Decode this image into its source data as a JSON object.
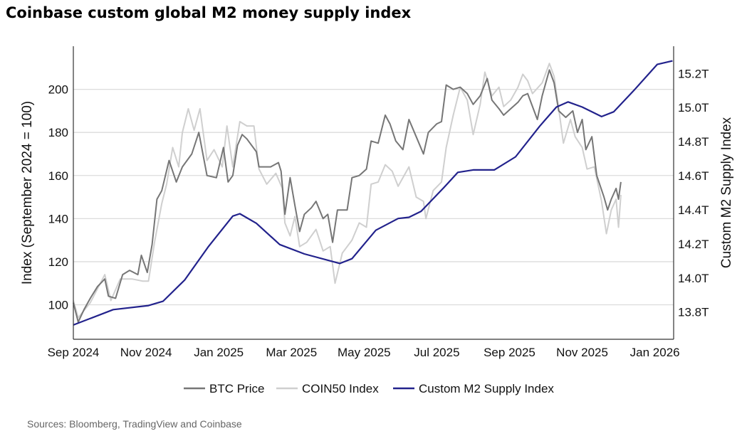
{
  "title": "Coinbase custom global M2 money supply index",
  "source": "Sources: Bloomberg, TradingView and Coinbase",
  "chart_data": {
    "type": "line",
    "title": "Coinbase custom global M2 money supply index",
    "xlabel": "",
    "ylabel": "Index (September 2024 = 100)",
    "y2label": "Custom M2 Supply Index",
    "xlim": [
      "2024-09-01",
      "2026-01-17"
    ],
    "ylim": [
      84,
      220
    ],
    "y2lim": [
      13.64,
      15.36
    ],
    "grid": true,
    "legend": "bottom",
    "x_ticks": [
      {
        "date": "2024-09-01",
        "label": "Sep 2024"
      },
      {
        "date": "2024-11-01",
        "label": "Nov 2024"
      },
      {
        "date": "2025-01-01",
        "label": "Jan 2025"
      },
      {
        "date": "2025-03-01",
        "label": "Mar 2025"
      },
      {
        "date": "2025-05-01",
        "label": "May 2025"
      },
      {
        "date": "2025-07-01",
        "label": "Jul 2025"
      },
      {
        "date": "2025-09-01",
        "label": "Sep 2025"
      },
      {
        "date": "2025-11-01",
        "label": "Nov 2025"
      },
      {
        "date": "2026-01-01",
        "label": "Jan 2026"
      }
    ],
    "y_ticks": [
      {
        "value": 100,
        "label": "100"
      },
      {
        "value": 120,
        "label": "120"
      },
      {
        "value": 140,
        "label": "140"
      },
      {
        "value": 160,
        "label": "160"
      },
      {
        "value": 180,
        "label": "180"
      },
      {
        "value": 200,
        "label": "200"
      }
    ],
    "y2_ticks": [
      {
        "value": 13.8,
        "label": "13.8T"
      },
      {
        "value": 14.0,
        "label": "14.0T"
      },
      {
        "value": 14.2,
        "label": "14.2T"
      },
      {
        "value": 14.4,
        "label": "14.4T"
      },
      {
        "value": 14.6,
        "label": "14.6T"
      },
      {
        "value": 14.8,
        "label": "14.8T"
      },
      {
        "value": 15.0,
        "label": "15.0T"
      },
      {
        "value": 15.2,
        "label": "15.2T"
      }
    ],
    "series": [
      {
        "name": "BTC Price",
        "axis": "left",
        "color": "#767676",
        "width": 2,
        "points": [
          [
            "2024-09-01",
            101
          ],
          [
            "2024-09-05",
            92
          ],
          [
            "2024-09-10",
            98
          ],
          [
            "2024-09-15",
            103
          ],
          [
            "2024-09-21",
            108.5
          ],
          [
            "2024-09-27",
            112
          ],
          [
            "2024-09-30",
            104
          ],
          [
            "2024-10-06",
            103
          ],
          [
            "2024-10-12",
            114
          ],
          [
            "2024-10-18",
            116
          ],
          [
            "2024-10-25",
            114
          ],
          [
            "2024-10-28",
            123
          ],
          [
            "2024-11-02",
            115
          ],
          [
            "2024-11-06",
            128
          ],
          [
            "2024-11-10",
            149
          ],
          [
            "2024-11-14",
            153
          ],
          [
            "2024-11-20",
            167
          ],
          [
            "2024-11-26",
            157
          ],
          [
            "2024-12-01",
            164
          ],
          [
            "2024-12-09",
            170
          ],
          [
            "2024-12-15",
            180
          ],
          [
            "2024-12-22",
            160
          ],
          [
            "2024-12-30",
            159
          ],
          [
            "2025-01-05",
            173
          ],
          [
            "2025-01-09",
            157
          ],
          [
            "2025-01-13",
            160
          ],
          [
            "2025-01-17",
            174
          ],
          [
            "2025-01-21",
            179
          ],
          [
            "2025-01-25",
            177
          ],
          [
            "2025-02-02",
            171
          ],
          [
            "2025-02-04",
            164
          ],
          [
            "2025-02-13",
            164
          ],
          [
            "2025-02-19",
            166
          ],
          [
            "2025-02-21",
            162
          ],
          [
            "2025-02-24",
            142
          ],
          [
            "2025-02-28",
            159
          ],
          [
            "2025-03-04",
            146
          ],
          [
            "2025-03-08",
            134
          ],
          [
            "2025-03-12",
            142
          ],
          [
            "2025-03-18",
            145
          ],
          [
            "2025-03-22",
            148
          ],
          [
            "2025-03-28",
            140
          ],
          [
            "2025-04-01",
            142
          ],
          [
            "2025-04-05",
            129
          ],
          [
            "2025-04-09",
            144
          ],
          [
            "2025-04-17",
            144
          ],
          [
            "2025-04-21",
            159
          ],
          [
            "2025-04-27",
            160
          ],
          [
            "2025-05-03",
            163
          ],
          [
            "2025-05-07",
            176
          ],
          [
            "2025-05-13",
            175
          ],
          [
            "2025-05-19",
            188
          ],
          [
            "2025-05-23",
            184
          ],
          [
            "2025-05-28",
            176
          ],
          [
            "2025-06-03",
            172
          ],
          [
            "2025-06-08",
            186
          ],
          [
            "2025-06-14",
            178
          ],
          [
            "2025-06-20",
            170
          ],
          [
            "2025-06-24",
            180
          ],
          [
            "2025-07-01",
            184
          ],
          [
            "2025-07-05",
            185
          ],
          [
            "2025-07-09",
            202
          ],
          [
            "2025-07-15",
            200
          ],
          [
            "2025-07-21",
            201
          ],
          [
            "2025-07-27",
            198
          ],
          [
            "2025-08-01",
            193
          ],
          [
            "2025-08-07",
            197
          ],
          [
            "2025-08-13",
            205
          ],
          [
            "2025-08-17",
            195
          ],
          [
            "2025-08-23",
            191
          ],
          [
            "2025-08-27",
            188
          ],
          [
            "2025-09-02",
            191
          ],
          [
            "2025-09-08",
            194
          ],
          [
            "2025-09-12",
            197
          ],
          [
            "2025-09-16",
            198
          ],
          [
            "2025-09-24",
            186
          ],
          [
            "2025-09-28",
            197
          ],
          [
            "2025-10-04",
            209
          ],
          [
            "2025-10-08",
            203
          ],
          [
            "2025-10-12",
            190
          ],
          [
            "2025-10-18",
            187
          ],
          [
            "2025-10-24",
            190
          ],
          [
            "2025-10-28",
            180
          ],
          [
            "2025-11-01",
            186
          ],
          [
            "2025-11-04",
            172
          ],
          [
            "2025-11-09",
            178
          ],
          [
            "2025-11-13",
            160
          ],
          [
            "2025-11-19",
            150
          ],
          [
            "2025-11-22",
            144
          ],
          [
            "2025-11-25",
            149
          ],
          [
            "2025-11-29",
            154
          ],
          [
            "2025-12-01",
            149
          ],
          [
            "2025-12-03",
            157
          ]
        ]
      },
      {
        "name": "COIN50 Index",
        "axis": "left",
        "color": "#cfcfcf",
        "width": 2,
        "points": [
          [
            "2024-09-01",
            102
          ],
          [
            "2024-09-05",
            94
          ],
          [
            "2024-09-15",
            101
          ],
          [
            "2024-09-27",
            114
          ],
          [
            "2024-10-02",
            102
          ],
          [
            "2024-10-10",
            112
          ],
          [
            "2024-10-20",
            112
          ],
          [
            "2024-10-29",
            111
          ],
          [
            "2024-11-03",
            111
          ],
          [
            "2024-11-08",
            129
          ],
          [
            "2024-11-14",
            147
          ],
          [
            "2024-11-18",
            156
          ],
          [
            "2024-11-23",
            173
          ],
          [
            "2024-11-28",
            164
          ],
          [
            "2024-12-01",
            180
          ],
          [
            "2024-12-06",
            191
          ],
          [
            "2024-12-11",
            181
          ],
          [
            "2024-12-16",
            191
          ],
          [
            "2024-12-22",
            167
          ],
          [
            "2024-12-28",
            172
          ],
          [
            "2025-01-04",
            164
          ],
          [
            "2025-01-08",
            183
          ],
          [
            "2025-01-13",
            164
          ],
          [
            "2025-01-19",
            185
          ],
          [
            "2025-01-25",
            183
          ],
          [
            "2025-01-31",
            183
          ],
          [
            "2025-02-04",
            163
          ],
          [
            "2025-02-10",
            156
          ],
          [
            "2025-02-17",
            161
          ],
          [
            "2025-02-22",
            154
          ],
          [
            "2025-02-24",
            138
          ],
          [
            "2025-02-28",
            132
          ],
          [
            "2025-03-04",
            141
          ],
          [
            "2025-03-08",
            127
          ],
          [
            "2025-03-14",
            129
          ],
          [
            "2025-03-22",
            135
          ],
          [
            "2025-03-28",
            125
          ],
          [
            "2025-04-03",
            127
          ],
          [
            "2025-04-07",
            110
          ],
          [
            "2025-04-13",
            124
          ],
          [
            "2025-04-21",
            130
          ],
          [
            "2025-04-27",
            138
          ],
          [
            "2025-05-03",
            136
          ],
          [
            "2025-05-07",
            156
          ],
          [
            "2025-05-13",
            157
          ],
          [
            "2025-05-19",
            165
          ],
          [
            "2025-05-25",
            162
          ],
          [
            "2025-05-30",
            155
          ],
          [
            "2025-06-08",
            164
          ],
          [
            "2025-06-14",
            150
          ],
          [
            "2025-06-20",
            148
          ],
          [
            "2025-06-22",
            140
          ],
          [
            "2025-06-28",
            153
          ],
          [
            "2025-07-05",
            157
          ],
          [
            "2025-07-09",
            173
          ],
          [
            "2025-07-15",
            188
          ],
          [
            "2025-07-21",
            201
          ],
          [
            "2025-07-27",
            195
          ],
          [
            "2025-08-01",
            179
          ],
          [
            "2025-08-07",
            193
          ],
          [
            "2025-08-11",
            208
          ],
          [
            "2025-08-17",
            197
          ],
          [
            "2025-08-23",
            201
          ],
          [
            "2025-08-27",
            192
          ],
          [
            "2025-09-02",
            195
          ],
          [
            "2025-09-08",
            201
          ],
          [
            "2025-09-12",
            207
          ],
          [
            "2025-09-16",
            204
          ],
          [
            "2025-09-20",
            198
          ],
          [
            "2025-09-28",
            203
          ],
          [
            "2025-10-04",
            212
          ],
          [
            "2025-10-08",
            206
          ],
          [
            "2025-10-12",
            191
          ],
          [
            "2025-10-16",
            175
          ],
          [
            "2025-10-22",
            186
          ],
          [
            "2025-10-26",
            178
          ],
          [
            "2025-11-01",
            173
          ],
          [
            "2025-11-05",
            163
          ],
          [
            "2025-11-11",
            164
          ],
          [
            "2025-11-17",
            148
          ],
          [
            "2025-11-21",
            133
          ],
          [
            "2025-11-25",
            144
          ],
          [
            "2025-11-29",
            149
          ],
          [
            "2025-12-01",
            136
          ],
          [
            "2025-12-03",
            151
          ]
        ]
      },
      {
        "name": "Custom M2 Supply Index",
        "axis": "right",
        "color": "#22228c",
        "width": 2.2,
        "points": [
          [
            "2024-09-01",
            13.724
          ],
          [
            "2024-10-04",
            13.814
          ],
          [
            "2024-11-03",
            13.838
          ],
          [
            "2024-11-15",
            13.863
          ],
          [
            "2024-12-03",
            13.988
          ],
          [
            "2024-12-23",
            14.182
          ],
          [
            "2025-01-13",
            14.363
          ],
          [
            "2025-01-19",
            14.377
          ],
          [
            "2025-02-02",
            14.321
          ],
          [
            "2025-02-20",
            14.196
          ],
          [
            "2025-03-12",
            14.141
          ],
          [
            "2025-04-11",
            14.085
          ],
          [
            "2025-04-21",
            14.113
          ],
          [
            "2025-05-11",
            14.28
          ],
          [
            "2025-05-30",
            14.349
          ],
          [
            "2025-06-08",
            14.356
          ],
          [
            "2025-06-18",
            14.391
          ],
          [
            "2025-07-07",
            14.53
          ],
          [
            "2025-07-19",
            14.62
          ],
          [
            "2025-08-01",
            14.634
          ],
          [
            "2025-08-19",
            14.634
          ],
          [
            "2025-09-06",
            14.711
          ],
          [
            "2025-09-26",
            14.891
          ],
          [
            "2025-10-10",
            15.003
          ],
          [
            "2025-10-20",
            15.033
          ],
          [
            "2025-11-01",
            15.003
          ],
          [
            "2025-11-17",
            14.947
          ],
          [
            "2025-11-27",
            14.975
          ],
          [
            "2025-12-14",
            15.1
          ],
          [
            "2026-01-03",
            15.253
          ],
          [
            "2026-01-16",
            15.274
          ]
        ]
      }
    ]
  }
}
